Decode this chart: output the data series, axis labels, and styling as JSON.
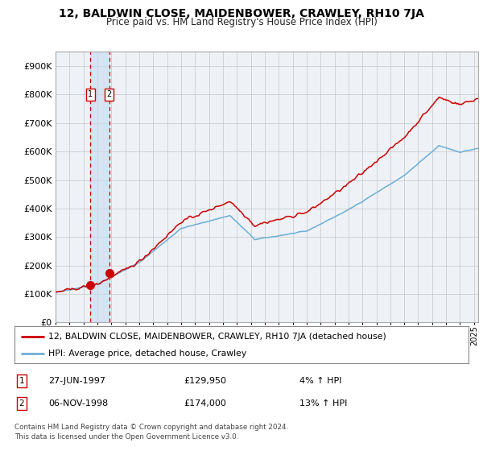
{
  "title": "12, BALDWIN CLOSE, MAIDENBOWER, CRAWLEY, RH10 7JA",
  "subtitle": "Price paid vs. HM Land Registry's House Price Index (HPI)",
  "ylim": [
    0,
    950000
  ],
  "xlim_start": 1995.0,
  "xlim_end": 2025.3,
  "sale1_date": 1997.487,
  "sale1_price": 129950,
  "sale2_date": 1998.845,
  "sale2_price": 174000,
  "legend_line1": "12, BALDWIN CLOSE, MAIDENBOWER, CRAWLEY, RH10 7JA (detached house)",
  "legend_line2": "HPI: Average price, detached house, Crawley",
  "footnote": "Contains HM Land Registry data © Crown copyright and database right 2024.\nThis data is licensed under the Open Government Licence v3.0.",
  "hpi_color": "#6baed6",
  "price_color": "#cc0000",
  "vline_color": "#cc0000",
  "grid_color": "#cccccc",
  "bg_color": "#eef2f7",
  "plot_bg": "#ffffff",
  "span_color": "#c6d9f0"
}
